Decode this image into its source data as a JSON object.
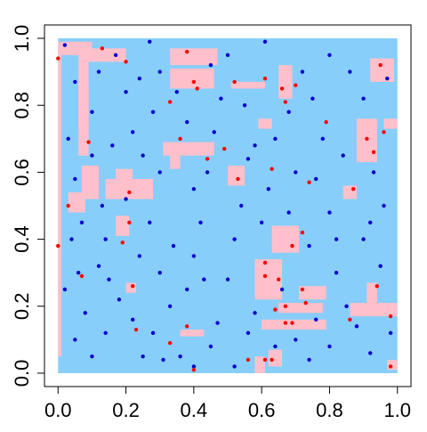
{
  "colors": {
    "background": "#FFFFFF",
    "region_fill": "#87CEFA",
    "highlight_fill": "#FFC0CB",
    "blue_points": "#0000CD",
    "red_points": "#FF0000",
    "axis": "#000000"
  },
  "chart_data": {
    "type": "scatter",
    "title": "",
    "xlabel": "",
    "ylabel": "",
    "xlim": [
      -0.04,
      1.04
    ],
    "ylim": [
      -0.04,
      1.04
    ],
    "x_ticks": [
      0.0,
      0.2,
      0.4,
      0.6,
      0.8,
      1.0
    ],
    "x_tick_labels": [
      "0.0",
      "0.2",
      "0.4",
      "0.6",
      "0.8",
      "1.0"
    ],
    "y_ticks": [
      0.0,
      0.2,
      0.4,
      0.6,
      0.8,
      1.0
    ],
    "y_tick_labels": [
      "0.0",
      "0.2",
      "0.4",
      "0.6",
      "0.8",
      "1.0"
    ],
    "grid": false,
    "legend": "none",
    "background_region": {
      "x": [
        0.0,
        1.0
      ],
      "y": [
        0.0,
        1.0
      ]
    },
    "highlight_regions": [
      {
        "x": [
          0.0,
          0.01
        ],
        "y": [
          0.05,
          0.98
        ]
      },
      {
        "x": [
          0.0,
          0.1
        ],
        "y": [
          0.95,
          0.99
        ]
      },
      {
        "x": [
          0.08,
          0.2
        ],
        "y": [
          0.93,
          0.97
        ]
      },
      {
        "x": [
          0.06,
          0.09
        ],
        "y": [
          0.65,
          0.97
        ]
      },
      {
        "x": [
          0.06,
          0.09
        ],
        "y": [
          0.72,
          0.86
        ]
      },
      {
        "x": [
          0.03,
          0.08
        ],
        "y": [
          0.48,
          0.54
        ]
      },
      {
        "x": [
          0.07,
          0.12
        ],
        "y": [
          0.52,
          0.62
        ]
      },
      {
        "x": [
          0.14,
          0.28
        ],
        "y": [
          0.52,
          0.58
        ]
      },
      {
        "x": [
          0.17,
          0.22
        ],
        "y": [
          0.58,
          0.61
        ]
      },
      {
        "x": [
          0.17,
          0.21
        ],
        "y": [
          0.41,
          0.47
        ]
      },
      {
        "x": [
          0.33,
          0.47
        ],
        "y": [
          0.92,
          0.97
        ]
      },
      {
        "x": [
          0.33,
          0.46
        ],
        "y": [
          0.85,
          0.91
        ]
      },
      {
        "x": [
          0.34,
          0.45
        ],
        "y": [
          0.88,
          0.9
        ]
      },
      {
        "x": [
          0.51,
          0.61
        ],
        "y": [
          0.85,
          0.87
        ]
      },
      {
        "x": [
          0.65,
          0.69
        ],
        "y": [
          0.82,
          0.92
        ]
      },
      {
        "x": [
          0.31,
          0.46
        ],
        "y": [
          0.65,
          0.69
        ]
      },
      {
        "x": [
          0.33,
          0.36
        ],
        "y": [
          0.61,
          0.69
        ]
      },
      {
        "x": [
          0.5,
          0.55
        ],
        "y": [
          0.56,
          0.62
        ]
      },
      {
        "x": [
          0.59,
          0.63
        ],
        "y": [
          0.73,
          0.76
        ]
      },
      {
        "x": [
          0.63,
          0.71
        ],
        "y": [
          0.36,
          0.44
        ]
      },
      {
        "x": [
          0.58,
          0.66
        ],
        "y": [
          0.22,
          0.34
        ]
      },
      {
        "x": [
          0.59,
          0.61
        ],
        "y": [
          0.26,
          0.3
        ]
      },
      {
        "x": [
          0.65,
          0.78
        ],
        "y": [
          0.18,
          0.21
        ]
      },
      {
        "x": [
          0.6,
          0.79
        ],
        "y": [
          0.13,
          0.16
        ]
      },
      {
        "x": [
          0.62,
          0.66
        ],
        "y": [
          0.02,
          0.07
        ]
      },
      {
        "x": [
          0.58,
          0.61
        ],
        "y": [
          0.0,
          0.05
        ]
      },
      {
        "x": [
          0.71,
          0.79
        ],
        "y": [
          0.22,
          0.26
        ]
      },
      {
        "x": [
          0.88,
          0.94
        ],
        "y": [
          0.63,
          0.76
        ]
      },
      {
        "x": [
          0.86,
          1.0
        ],
        "y": [
          0.17,
          0.21
        ]
      },
      {
        "x": [
          0.91,
          0.94
        ],
        "y": [
          0.18,
          0.27
        ]
      },
      {
        "x": [
          0.92,
          0.99
        ],
        "y": [
          0.87,
          0.94
        ]
      },
      {
        "x": [
          0.96,
          1.0
        ],
        "y": [
          0.73,
          0.76
        ]
      },
      {
        "x": [
          0.36,
          0.43
        ],
        "y": [
          0.11,
          0.13
        ]
      },
      {
        "x": [
          0.2,
          0.23
        ],
        "y": [
          0.24,
          0.27
        ]
      },
      {
        "x": [
          0.84,
          0.88
        ],
        "y": [
          0.52,
          0.56
        ]
      },
      {
        "x": [
          0.97,
          1.0
        ],
        "y": [
          0.01,
          0.04
        ]
      }
    ],
    "series": [
      {
        "color_key": "blue_points",
        "points": [
          [
            0.02,
            0.98
          ],
          [
            0.05,
            0.87
          ],
          [
            0.03,
            0.7
          ],
          [
            0.05,
            0.58
          ],
          [
            0.07,
            0.45
          ],
          [
            0.04,
            0.4
          ],
          [
            0.02,
            0.25
          ],
          [
            0.08,
            0.18
          ],
          [
            0.05,
            0.1
          ],
          [
            0.1,
            0.05
          ],
          [
            0.12,
            0.32
          ],
          [
            0.15,
            0.28
          ],
          [
            0.18,
            0.22
          ],
          [
            0.14,
            0.12
          ],
          [
            0.1,
            0.78
          ],
          [
            0.12,
            0.9
          ],
          [
            0.17,
            0.95
          ],
          [
            0.2,
            0.84
          ],
          [
            0.24,
            0.88
          ],
          [
            0.22,
            0.72
          ],
          [
            0.28,
            0.78
          ],
          [
            0.25,
            0.65
          ],
          [
            0.3,
            0.6
          ],
          [
            0.27,
            0.45
          ],
          [
            0.24,
            0.35
          ],
          [
            0.3,
            0.3
          ],
          [
            0.33,
            0.2
          ],
          [
            0.28,
            0.12
          ],
          [
            0.25,
            0.05
          ],
          [
            0.31,
            0.04
          ],
          [
            0.36,
            0.05
          ],
          [
            0.38,
            0.25
          ],
          [
            0.4,
            0.35
          ],
          [
            0.42,
            0.45
          ],
          [
            0.4,
            0.55
          ],
          [
            0.44,
            0.6
          ],
          [
            0.46,
            0.72
          ],
          [
            0.48,
            0.82
          ],
          [
            0.45,
            0.92
          ],
          [
            0.5,
            0.95
          ],
          [
            0.55,
            0.8
          ],
          [
            0.58,
            0.68
          ],
          [
            0.54,
            0.5
          ],
          [
            0.52,
            0.4
          ],
          [
            0.5,
            0.28
          ],
          [
            0.47,
            0.15
          ],
          [
            0.45,
            0.08
          ],
          [
            0.52,
            0.02
          ],
          [
            0.56,
            0.12
          ],
          [
            0.6,
            0.45
          ],
          [
            0.62,
            0.55
          ],
          [
            0.64,
            0.7
          ],
          [
            0.68,
            0.78
          ],
          [
            0.72,
            0.9
          ],
          [
            0.75,
            0.82
          ],
          [
            0.78,
            0.7
          ],
          [
            0.76,
            0.58
          ],
          [
            0.8,
            0.48
          ],
          [
            0.74,
            0.38
          ],
          [
            0.82,
            0.3
          ],
          [
            0.85,
            0.2
          ],
          [
            0.8,
            0.08
          ],
          [
            0.74,
            0.04
          ],
          [
            0.7,
            0.1
          ],
          [
            0.86,
            0.9
          ],
          [
            0.9,
            0.82
          ],
          [
            0.93,
            0.6
          ],
          [
            0.96,
            0.5
          ],
          [
            0.9,
            0.4
          ],
          [
            0.95,
            0.32
          ],
          [
            0.98,
            0.12
          ],
          [
            0.92,
            0.06
          ],
          [
            0.88,
            0.14
          ],
          [
            0.27,
            0.99
          ],
          [
            0.35,
            0.84
          ],
          [
            0.1,
            0.65
          ],
          [
            0.13,
            0.5
          ],
          [
            0.16,
            0.68
          ],
          [
            0.34,
            0.38
          ],
          [
            0.66,
            0.25
          ],
          [
            0.58,
            0.18
          ],
          [
            0.7,
            0.6
          ],
          [
            0.84,
            0.65
          ],
          [
            0.8,
            0.95
          ],
          [
            0.61,
            0.99
          ],
          [
            0.38,
            0.75
          ],
          [
            0.43,
            0.28
          ],
          [
            0.2,
            0.52
          ],
          [
            0.06,
            0.3
          ],
          [
            0.97,
            0.88
          ],
          [
            0.14,
            0.4
          ],
          [
            0.3,
            0.9
          ],
          [
            0.56,
            0.64
          ],
          [
            0.68,
            0.48
          ],
          [
            0.82,
            0.4
          ],
          [
            0.92,
            0.45
          ],
          [
            0.76,
            0.16
          ],
          [
            0.64,
            0.08
          ],
          [
            0.4,
            0.02
          ],
          [
            0.22,
            0.16
          ]
        ]
      },
      {
        "color_key": "red_points",
        "points": [
          [
            0.0,
            0.94
          ],
          [
            0.0,
            0.38
          ],
          [
            0.09,
            0.69
          ],
          [
            0.03,
            0.5
          ],
          [
            0.07,
            0.29
          ],
          [
            0.21,
            0.54
          ],
          [
            0.21,
            0.45
          ],
          [
            0.19,
            0.39
          ],
          [
            0.22,
            0.26
          ],
          [
            0.13,
            0.97
          ],
          [
            0.2,
            0.93
          ],
          [
            0.38,
            0.96
          ],
          [
            0.4,
            0.87
          ],
          [
            0.41,
            0.85
          ],
          [
            0.33,
            0.81
          ],
          [
            0.44,
            0.64
          ],
          [
            0.49,
            0.67
          ],
          [
            0.52,
            0.87
          ],
          [
            0.66,
            0.85
          ],
          [
            0.67,
            0.81
          ],
          [
            0.7,
            0.86
          ],
          [
            0.63,
            0.61
          ],
          [
            0.61,
            0.88
          ],
          [
            0.36,
            0.7
          ],
          [
            0.53,
            0.58
          ],
          [
            0.69,
            0.38
          ],
          [
            0.72,
            0.42
          ],
          [
            0.61,
            0.33
          ],
          [
            0.61,
            0.29
          ],
          [
            0.64,
            0.19
          ],
          [
            0.67,
            0.2
          ],
          [
            0.72,
            0.25
          ],
          [
            0.73,
            0.21
          ],
          [
            0.67,
            0.15
          ],
          [
            0.69,
            0.15
          ],
          [
            0.61,
            0.04
          ],
          [
            0.63,
            0.04
          ],
          [
            0.56,
            0.04
          ],
          [
            0.38,
            0.14
          ],
          [
            0.33,
            0.09
          ],
          [
            0.4,
            0.01
          ],
          [
            0.79,
            0.75
          ],
          [
            0.91,
            0.7
          ],
          [
            0.93,
            0.66
          ],
          [
            0.96,
            0.72
          ],
          [
            0.95,
            0.92
          ],
          [
            0.87,
            0.55
          ],
          [
            0.94,
            0.26
          ],
          [
            0.98,
            0.17
          ],
          [
            0.98,
            0.02
          ],
          [
            0.74,
            0.57
          ],
          [
            0.86,
            0.16
          ],
          [
            0.65,
            0.28
          ],
          [
            0.23,
            0.13
          ]
        ]
      }
    ]
  }
}
